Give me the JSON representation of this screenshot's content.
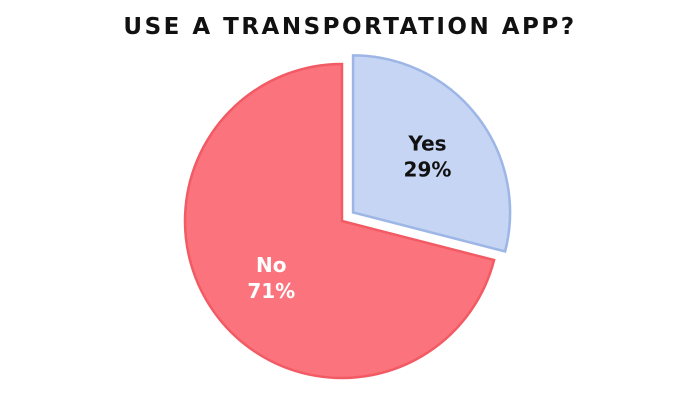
{
  "chart_data": {
    "type": "pie",
    "title": "USE A TRANSPORTATION APP?",
    "slices": [
      {
        "label": "Yes",
        "value": 29,
        "value_label": "29%",
        "color": "#c5d5f3",
        "stroke": "#9db6e6",
        "text_color": "#111111",
        "exploded": true
      },
      {
        "label": "No",
        "value": 71,
        "value_label": "71%",
        "color": "#fb737c",
        "stroke": "#f25a64",
        "text_color": "#ffffff",
        "exploded": false
      }
    ]
  }
}
